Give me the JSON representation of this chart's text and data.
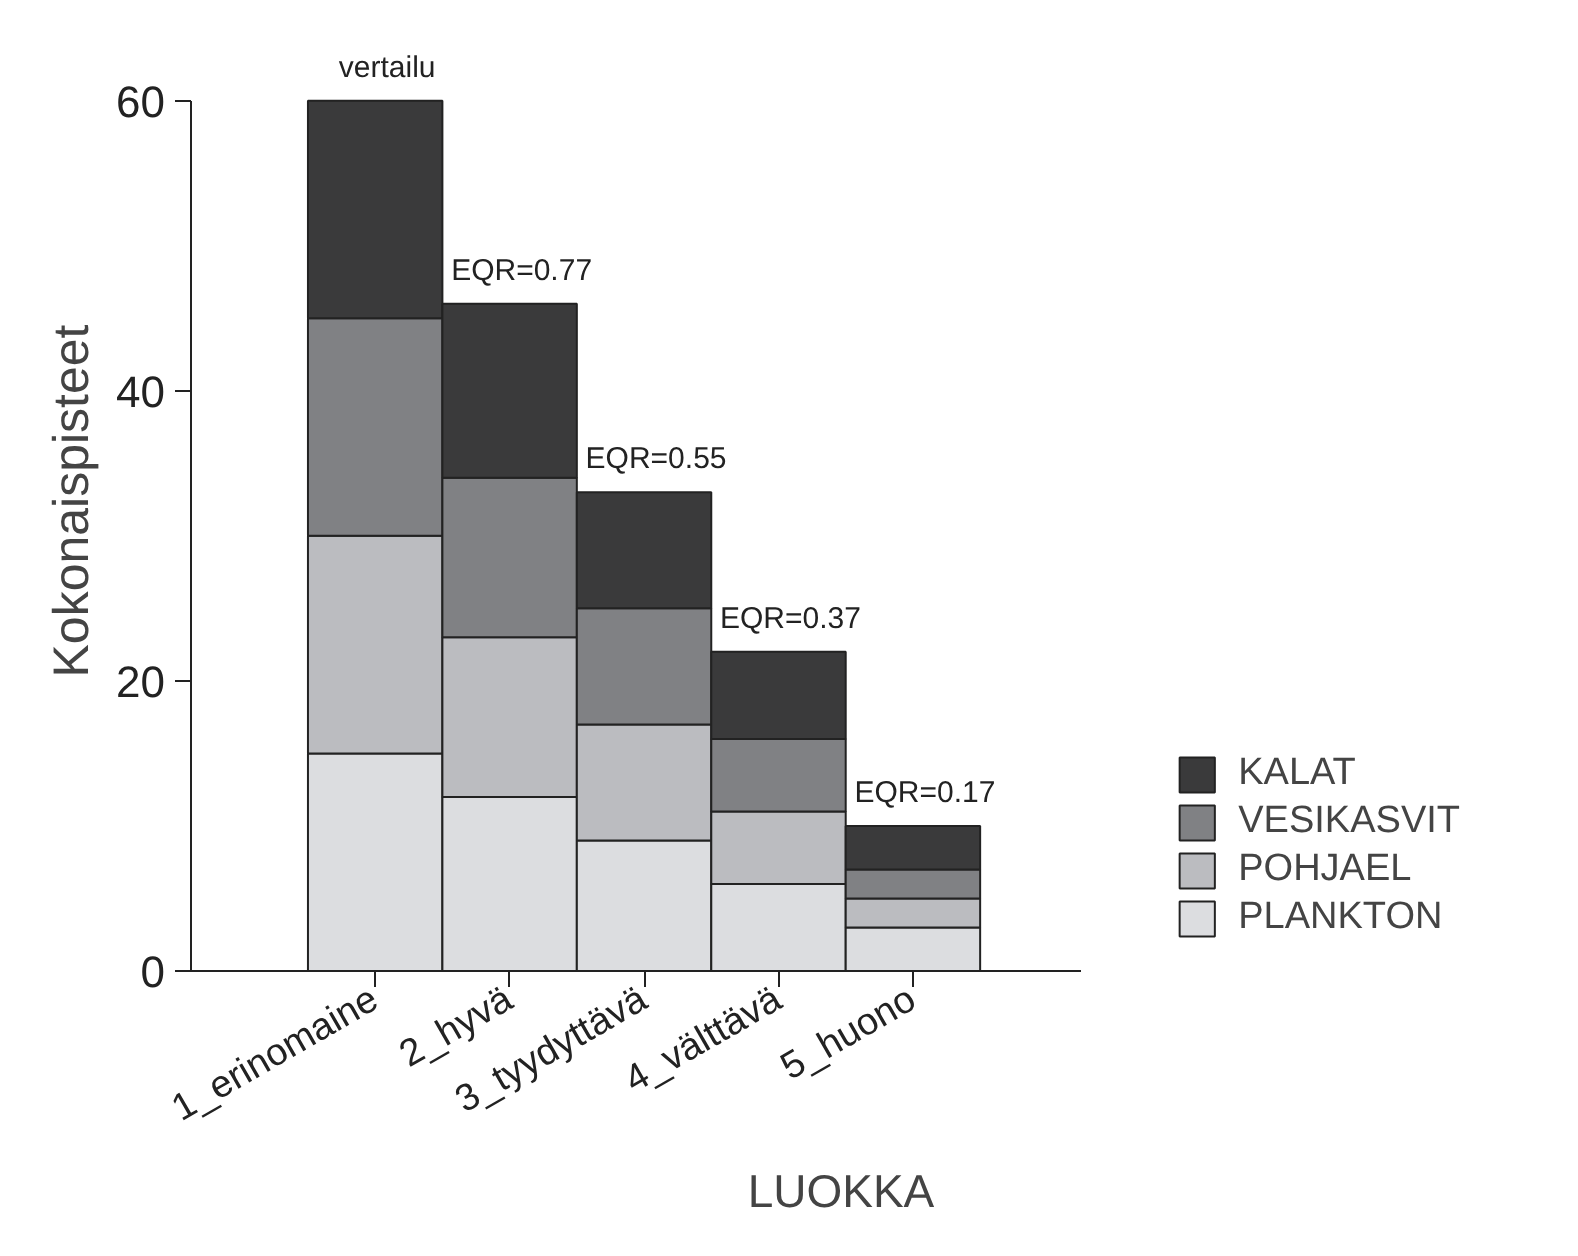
{
  "chart_data": {
    "type": "bar",
    "stacked": true,
    "xlabel": "LUOKKA",
    "ylabel": "Kokonaispisteet",
    "categories": [
      "1_erinomaine",
      "2_hyvä",
      "3_tyydyttävä",
      "4_välttävä",
      "5_huono"
    ],
    "series": [
      {
        "name": "PLANKTON",
        "color": "#dcdde0",
        "values": [
          15,
          12,
          9,
          6,
          3
        ]
      },
      {
        "name": "POHJAEL",
        "color": "#bbbcc0",
        "values": [
          15,
          11,
          8,
          5,
          2
        ]
      },
      {
        "name": "VESIKASVIT",
        "color": "#808184",
        "values": [
          15,
          11,
          8,
          5,
          2
        ]
      },
      {
        "name": "KALAT",
        "color": "#3a3a3b",
        "values": [
          15,
          12,
          8,
          6,
          3
        ]
      }
    ],
    "ylim": [
      0,
      60
    ],
    "yticks": [
      0,
      20,
      40,
      60
    ],
    "grid": false,
    "legend": "right",
    "annotations": [
      {
        "text": "vertailu",
        "x": "1_erinomaine",
        "y": 60
      },
      {
        "text": "EQR=0.77",
        "x": "2_hyvä",
        "y": 46
      },
      {
        "text": "EQR=0.55",
        "x": "3_tyydyttävä",
        "y": 33
      },
      {
        "text": "EQR=0.37",
        "x": "4_välttävä",
        "y": 22
      },
      {
        "text": "EQR=0.17",
        "x": "5_huono",
        "y": 10
      }
    ]
  }
}
